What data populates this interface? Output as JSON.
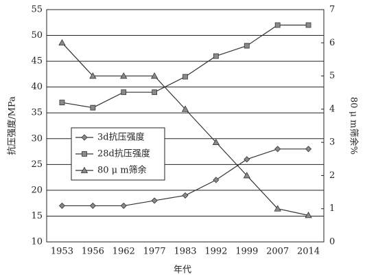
{
  "chart_data": {
    "type": "line",
    "x_label": "年代",
    "y_label": "抗压强度/MPa",
    "y2_label": "80 μ m筛余%",
    "categories": [
      "1953",
      "1956",
      "1962",
      "1977",
      "1983",
      "1992",
      "1999",
      "2007",
      "2014"
    ],
    "series": [
      {
        "name": "3d抗压强度",
        "color": "#333333",
        "marker": "diamond",
        "values": [
          17,
          17,
          17,
          18,
          19,
          22,
          26,
          28,
          28
        ]
      },
      {
        "name": "28d抗压强度",
        "color": "#333333",
        "marker": "square",
        "values": [
          37,
          36,
          39,
          39,
          42,
          46,
          48,
          52,
          52
        ]
      },
      {
        "name": "80 μ m筛余",
        "color": "#333333",
        "marker": "triangle",
        "axis": "y2",
        "values": [
          6,
          5,
          5,
          5,
          4,
          3,
          2,
          1,
          0.8
        ]
      }
    ],
    "ylim": [
      10,
      55
    ],
    "yticks": [
      10,
      15,
      20,
      25,
      30,
      35,
      40,
      45,
      50,
      55
    ],
    "y2lim": [
      0,
      7
    ],
    "y2ticks": [
      0,
      1,
      2,
      3,
      4,
      5,
      6,
      7
    ],
    "grid": true
  }
}
